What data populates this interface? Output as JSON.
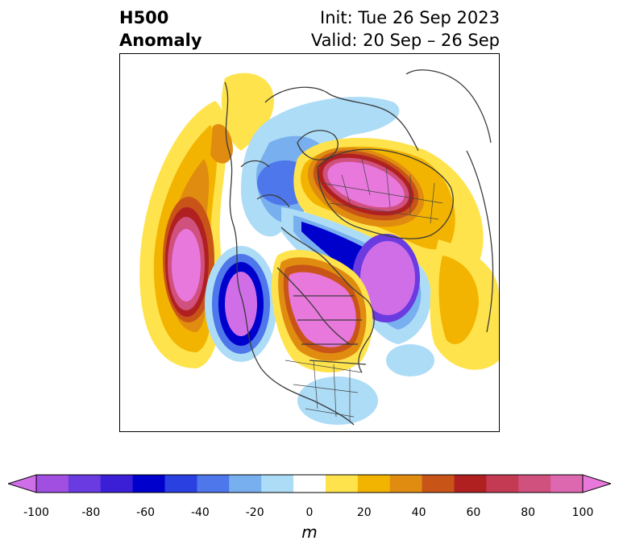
{
  "header": {
    "title_line1": "H500",
    "title_line2": "Anomaly",
    "init_text": "Init: Tue 26 Sep 2023",
    "valid_text": "Valid: 20 Sep – 26 Sep"
  },
  "colorbar": {
    "unit": "m",
    "ticks": [
      "-100",
      "-80",
      "-60",
      "-40",
      "-20",
      "0",
      "20",
      "40",
      "60",
      "80",
      "100"
    ],
    "colors": [
      "#d06ee8",
      "#a04fe0",
      "#6a3be0",
      "#3a1fd6",
      "#0000cc",
      "#2a40e0",
      "#4d77ea",
      "#78afef",
      "#addcf7",
      "#ffffff",
      "#ffe34d",
      "#f2b400",
      "#e08c10",
      "#c85418",
      "#b02020",
      "#c33a52",
      "#d0507e",
      "#de68b0",
      "#e878dc"
    ]
  }
}
